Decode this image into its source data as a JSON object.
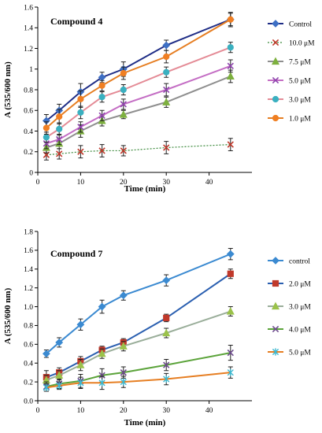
{
  "chart_data": [
    {
      "type": "line",
      "title": "Compound 4",
      "xlabel": "Time (min)",
      "ylabel": "A (535/600 nm)",
      "xlim": [
        0,
        50
      ],
      "ylim": [
        0,
        1.6
      ],
      "xticks": [
        0,
        10,
        20,
        30,
        40
      ],
      "yticks": [
        0,
        0.2,
        0.4,
        0.6,
        0.8,
        1.0,
        1.2,
        1.4,
        1.6
      ],
      "ytick_labels": [
        "0",
        "0.2",
        "0.4",
        "0.6",
        "0.8",
        "1",
        "1.2",
        "1.4",
        "1.6"
      ],
      "grid": false,
      "legend_position": "right",
      "x": [
        2,
        5,
        10,
        15,
        20,
        30,
        45
      ],
      "series": [
        {
          "name": "Control",
          "color": "#1f2d86",
          "marker": "diamond",
          "marker_color": "#3d6fc4",
          "values": [
            0.5,
            0.6,
            0.78,
            0.92,
            1.0,
            1.23,
            1.48
          ],
          "errors": [
            0.06,
            0.06,
            0.08,
            0.05,
            0.07,
            0.05,
            0.06
          ]
        },
        {
          "name": "10.0 μM",
          "color": "#3c8a3c",
          "marker": "x",
          "marker_color": "#c0392b",
          "line_style": "dotted",
          "values": [
            0.17,
            0.18,
            0.2,
            0.21,
            0.21,
            0.24,
            0.27
          ],
          "errors": [
            0.05,
            0.05,
            0.06,
            0.06,
            0.05,
            0.06,
            0.06
          ]
        },
        {
          "name": "7.5 μM",
          "color": "#8f8f8f",
          "marker": "triangle",
          "marker_color": "#7db03e",
          "values": [
            0.24,
            0.28,
            0.4,
            0.5,
            0.56,
            0.68,
            0.93
          ],
          "errors": [
            0.05,
            0.05,
            0.06,
            0.05,
            0.04,
            0.05,
            0.06
          ]
        },
        {
          "name": "5.0 μM",
          "color": "#c46ec4",
          "marker": "x",
          "marker_color": "#8e44ad",
          "values": [
            0.28,
            0.32,
            0.44,
            0.55,
            0.66,
            0.8,
            1.03
          ],
          "errors": [
            0.05,
            0.05,
            0.05,
            0.05,
            0.05,
            0.06,
            0.06
          ]
        },
        {
          "name": "3.0 μM",
          "color": "#e48b96",
          "marker": "circle",
          "marker_color": "#3ab0c0",
          "values": [
            0.34,
            0.42,
            0.58,
            0.73,
            0.8,
            0.97,
            1.21
          ],
          "errors": [
            0.05,
            0.06,
            0.06,
            0.05,
            0.05,
            0.05,
            0.05
          ]
        },
        {
          "name": "1.0 μM",
          "color": "#e67e22",
          "marker": "circle",
          "marker_color": "#f07f22",
          "values": [
            0.43,
            0.54,
            0.71,
            0.84,
            0.96,
            1.12,
            1.48
          ],
          "errors": [
            0.06,
            0.07,
            0.08,
            0.05,
            0.06,
            0.06,
            0.07
          ]
        }
      ]
    },
    {
      "type": "line",
      "title": "Compound 7",
      "xlabel": "Time (min)",
      "ylabel": "A (535/600 nm)",
      "xlim": [
        0,
        50
      ],
      "ylim": [
        0,
        1.8
      ],
      "xticks": [
        0,
        10,
        20,
        30,
        40
      ],
      "yticks": [
        0,
        0.2,
        0.4,
        0.6,
        0.8,
        1.0,
        1.2,
        1.4,
        1.6,
        1.8
      ],
      "ytick_labels": [
        "0.0",
        "0.2",
        "0.4",
        "0.6",
        "0.8",
        "1.0",
        "1.2",
        "1.4",
        "1.6",
        "1.8"
      ],
      "grid": false,
      "legend_position": "right",
      "x": [
        2,
        5,
        10,
        15,
        20,
        30,
        45
      ],
      "series": [
        {
          "name": "control",
          "color": "#3b8ad1",
          "marker": "diamond",
          "marker_color": "#3b8ad1",
          "values": [
            0.5,
            0.62,
            0.81,
            1.0,
            1.12,
            1.28,
            1.56
          ],
          "errors": [
            0.04,
            0.05,
            0.06,
            0.07,
            0.05,
            0.06,
            0.06
          ]
        },
        {
          "name": "2.0 μM",
          "color": "#2a5fb0",
          "marker": "square",
          "marker_color": "#c0392b",
          "values": [
            0.25,
            0.3,
            0.42,
            0.54,
            0.62,
            0.88,
            1.35
          ],
          "errors": [
            0.07,
            0.05,
            0.05,
            0.04,
            0.04,
            0.04,
            0.05
          ]
        },
        {
          "name": "3.0 μM",
          "color": "#9aae9a",
          "marker": "triangle",
          "marker_color": "#9bc24a",
          "values": [
            0.22,
            0.27,
            0.38,
            0.5,
            0.58,
            0.72,
            0.95
          ],
          "errors": [
            0.05,
            0.05,
            0.06,
            0.05,
            0.05,
            0.05,
            0.05
          ]
        },
        {
          "name": "4.0 μM",
          "color": "#5ba33a",
          "marker": "x",
          "marker_color": "#6c4a8c",
          "values": [
            0.15,
            0.18,
            0.21,
            0.27,
            0.3,
            0.38,
            0.51
          ],
          "errors": [
            0.05,
            0.05,
            0.07,
            0.07,
            0.06,
            0.06,
            0.08
          ]
        },
        {
          "name": "5.0 μM",
          "color": "#e67e22",
          "marker": "asterisk",
          "marker_color": "#3cb8d0",
          "values": [
            0.14,
            0.16,
            0.19,
            0.19,
            0.2,
            0.23,
            0.3
          ],
          "errors": [
            0.04,
            0.04,
            0.06,
            0.07,
            0.06,
            0.06,
            0.06
          ]
        }
      ]
    }
  ]
}
